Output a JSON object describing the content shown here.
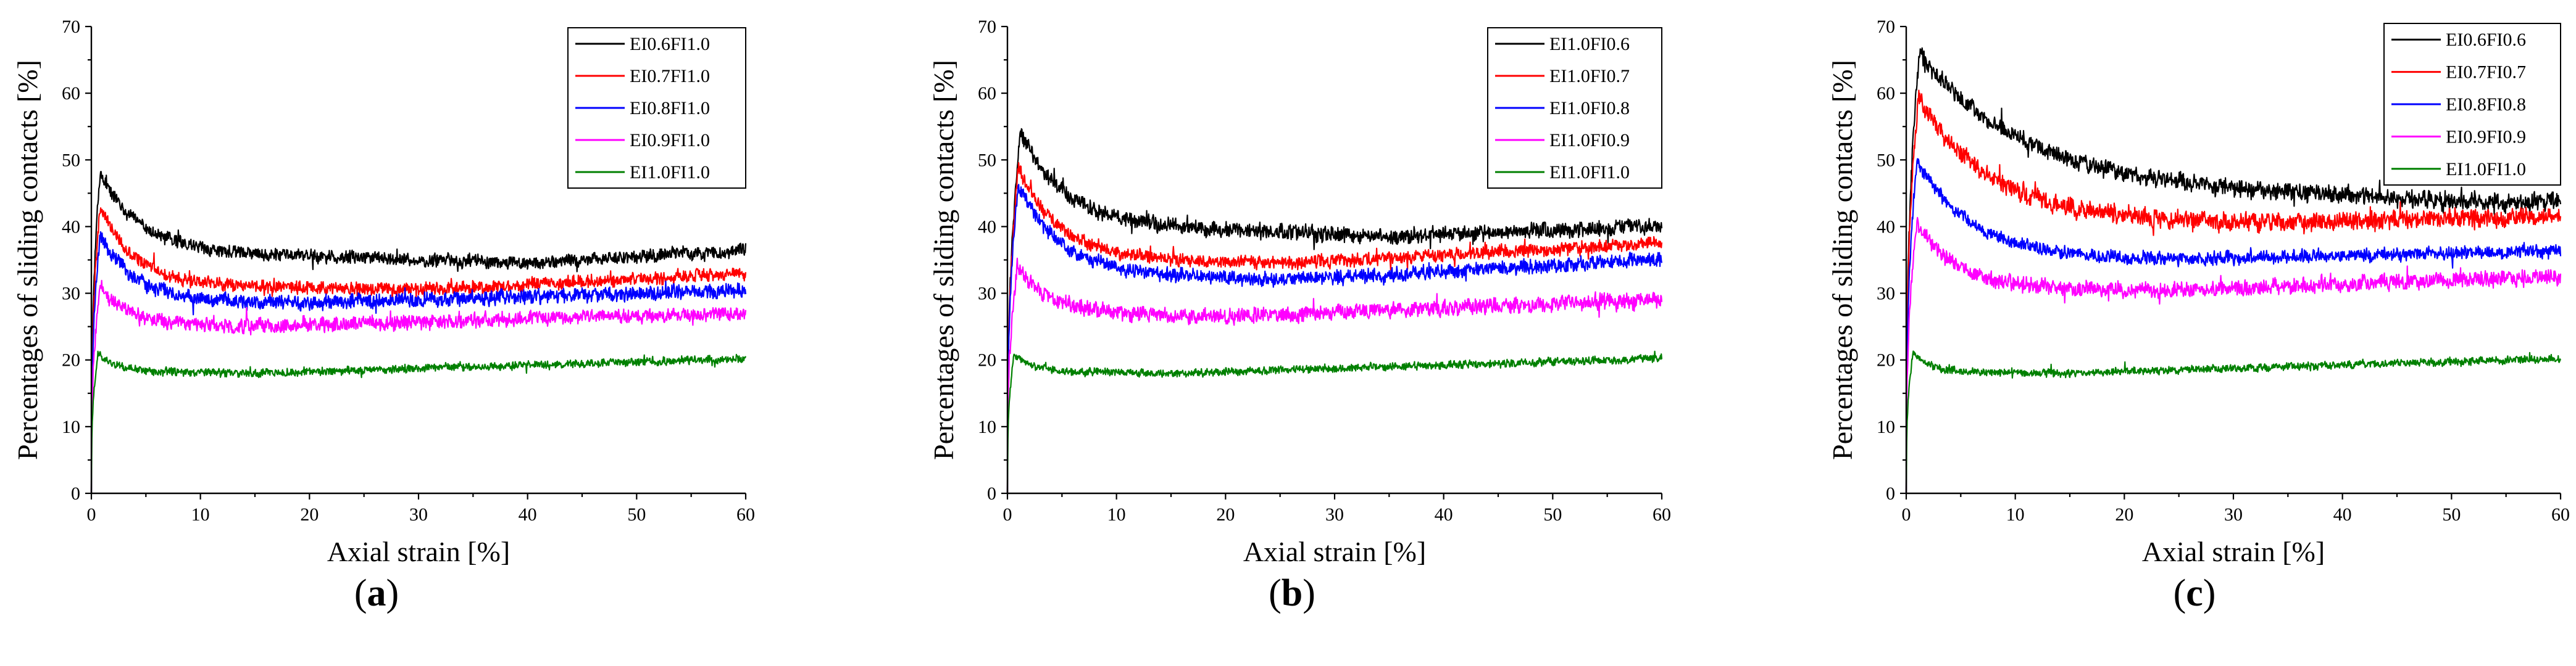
{
  "figure": {
    "panels": [
      "a",
      "b",
      "c"
    ]
  },
  "chart_data": [
    {
      "type": "line",
      "panel": "a",
      "caption_open": "(",
      "caption_letter": "a",
      "caption_close": ")",
      "xlabel": "Axial strain [%]",
      "ylabel": "Percentages of sliding contacts [%]",
      "xlim": [
        0,
        60
      ],
      "ylim": [
        0,
        70
      ],
      "xticks": [
        0,
        10,
        20,
        30,
        40,
        50,
        60
      ],
      "yticks": [
        0,
        10,
        20,
        30,
        40,
        50,
        60,
        70
      ],
      "legend_position": "top-right",
      "series": [
        {
          "name": "EI0.6FI1.0",
          "color": "#000000",
          "peak_x": 0.8,
          "peak_y": 48,
          "plateau": 36.5,
          "min_y": 34.5,
          "min_x": 40,
          "end_y": 36.5,
          "decay": 3.5,
          "noise": 1.0,
          "seed": 11
        },
        {
          "name": "EI0.7FI1.0",
          "color": "#ff0000",
          "peak_x": 0.8,
          "peak_y": 43,
          "plateau": 31.5,
          "min_y": 30.5,
          "min_x": 30,
          "end_y": 33,
          "decay": 3.0,
          "noise": 1.0,
          "seed": 12
        },
        {
          "name": "EI0.8FI1.0",
          "color": "#0000ff",
          "peak_x": 0.8,
          "peak_y": 39,
          "plateau": 29,
          "min_y": 28.5,
          "min_x": 20,
          "end_y": 30.5,
          "decay": 3.0,
          "noise": 1.1,
          "seed": 13
        },
        {
          "name": "EI0.9FI1.0",
          "color": "#ff00ff",
          "peak_x": 0.8,
          "peak_y": 31,
          "plateau": 25.5,
          "min_y": 25,
          "min_x": 15,
          "end_y": 27,
          "decay": 2.5,
          "noise": 1.1,
          "seed": 14
        },
        {
          "name": "EI1.0FI1.0",
          "color": "#008000",
          "peak_x": 0.6,
          "peak_y": 21,
          "plateau": 18.3,
          "min_y": 18,
          "min_x": 15,
          "end_y": 20.2,
          "decay": 1.5,
          "noise": 0.6,
          "seed": 15
        }
      ]
    },
    {
      "type": "line",
      "panel": "b",
      "caption_open": "(",
      "caption_letter": "b",
      "caption_close": ")",
      "xlabel": "Axial strain [%]",
      "ylabel": "Percentages of sliding contacts [%]",
      "xlim": [
        0,
        60
      ],
      "ylim": [
        0,
        70
      ],
      "xticks": [
        0,
        10,
        20,
        30,
        40,
        50,
        60
      ],
      "yticks": [
        0,
        10,
        20,
        30,
        40,
        50,
        60,
        70
      ],
      "legend_position": "top-right",
      "series": [
        {
          "name": "EI1.0FI0.6",
          "color": "#000000",
          "peak_x": 1.2,
          "peak_y": 54,
          "plateau": 40.5,
          "min_y": 38.5,
          "min_x": 35,
          "end_y": 40,
          "decay": 4.0,
          "noise": 1.2,
          "seed": 21
        },
        {
          "name": "EI1.0FI0.7",
          "color": "#ff0000",
          "peak_x": 1.0,
          "peak_y": 49,
          "plateau": 35.5,
          "min_y": 34.5,
          "min_x": 25,
          "end_y": 37.5,
          "decay": 3.5,
          "noise": 1.0,
          "seed": 22
        },
        {
          "name": "EI1.0FI0.8",
          "color": "#0000ff",
          "peak_x": 1.0,
          "peak_y": 46.5,
          "plateau": 33.5,
          "min_y": 32,
          "min_x": 25,
          "end_y": 35,
          "decay": 3.5,
          "noise": 1.1,
          "seed": 23
        },
        {
          "name": "EI1.0FI0.9",
          "color": "#ff00ff",
          "peak_x": 0.9,
          "peak_y": 34,
          "plateau": 27.5,
          "min_y": 26.5,
          "min_x": 20,
          "end_y": 29,
          "decay": 2.5,
          "noise": 1.2,
          "seed": 24
        },
        {
          "name": "EI1.0FI1.0",
          "color": "#008000",
          "peak_x": 0.6,
          "peak_y": 21,
          "plateau": 18.3,
          "min_y": 18,
          "min_x": 15,
          "end_y": 20.2,
          "decay": 1.5,
          "noise": 0.6,
          "seed": 25
        }
      ]
    },
    {
      "type": "line",
      "panel": "c",
      "caption_open": "(",
      "caption_letter": "c",
      "caption_close": ")",
      "xlabel": "Axial strain [%]",
      "ylabel": "Percentages of sliding contacts [%]",
      "xlim": [
        0,
        60
      ],
      "ylim": [
        0,
        70
      ],
      "xticks": [
        0,
        10,
        20,
        30,
        40,
        50,
        60
      ],
      "yticks": [
        0,
        10,
        20,
        30,
        40,
        50,
        60,
        70
      ],
      "legend_position": "top-right",
      "series": [
        {
          "name": "EI0.6FI0.6",
          "color": "#000000",
          "peak_x": 1.2,
          "peak_y": 66,
          "plateau": 47,
          "min_y": 43.5,
          "min_x": 55,
          "end_y": 44,
          "decay": 9.0,
          "noise": 1.3,
          "seed": 31
        },
        {
          "name": "EI0.7FI0.7",
          "color": "#ff0000",
          "peak_x": 1.1,
          "peak_y": 59.5,
          "plateau": 42,
          "min_y": 40.5,
          "min_x": 30,
          "end_y": 41.5,
          "decay": 6.0,
          "noise": 1.4,
          "seed": 32
        },
        {
          "name": "EI0.8FI0.8",
          "color": "#0000ff",
          "peak_x": 1.0,
          "peak_y": 50,
          "plateau": 36,
          "min_y": 35,
          "min_x": 25,
          "end_y": 36.5,
          "decay": 4.5,
          "noise": 1.0,
          "seed": 33
        },
        {
          "name": "EI0.9FI0.9",
          "color": "#ff00ff",
          "peak_x": 1.0,
          "peak_y": 40.5,
          "plateau": 31,
          "min_y": 30.5,
          "min_x": 25,
          "end_y": 32.5,
          "decay": 3.5,
          "noise": 1.2,
          "seed": 34
        },
        {
          "name": "EI1.0FI1.0",
          "color": "#008000",
          "peak_x": 0.6,
          "peak_y": 21,
          "plateau": 18.3,
          "min_y": 18,
          "min_x": 15,
          "end_y": 20.2,
          "decay": 1.5,
          "noise": 0.6,
          "seed": 35
        }
      ]
    }
  ]
}
